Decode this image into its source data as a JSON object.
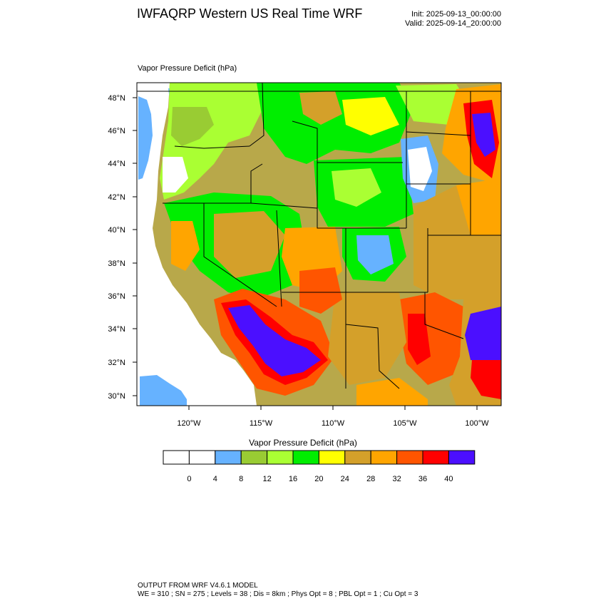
{
  "header": {
    "title": "IWFAQRP Western US Real Time WRF",
    "init": "Init: 2025-09-13_00:00:00",
    "valid": "Valid: 2025-09-14_20:00:00"
  },
  "map": {
    "subtitle": "Vapor Pressure Deficit   (hPa)",
    "lat_labels": [
      "48°N",
      "46°N",
      "44°N",
      "42°N",
      "40°N",
      "38°N",
      "36°N",
      "34°N",
      "32°N",
      "30°N"
    ],
    "lon_labels": [
      "120°W",
      "115°W",
      "110°W",
      "105°W",
      "100°W"
    ]
  },
  "colorbar": {
    "title": "Vapor Pressure Deficit  (hPa)",
    "tick_labels": [
      "0",
      "4",
      "8",
      "12",
      "16",
      "20",
      "24",
      "28",
      "32",
      "36",
      "40"
    ],
    "colors": [
      "#ffffff",
      "#ffffff",
      "#66b2ff",
      "#99cc33",
      "#aaff33",
      "#00ee00",
      "#ffff00",
      "#d4a02a",
      "#ffa500",
      "#ff5500",
      "#ff0000",
      "#4b0fff"
    ]
  },
  "footer": {
    "line1": "OUTPUT FROM WRF V4.6.1 MODEL",
    "line2": "WE = 310 ; SN = 275 ; Levels = 38 ; Dis = 8km ; Phys Opt = 8 ; PBL Opt = 1 ; Cu Opt = 3"
  }
}
